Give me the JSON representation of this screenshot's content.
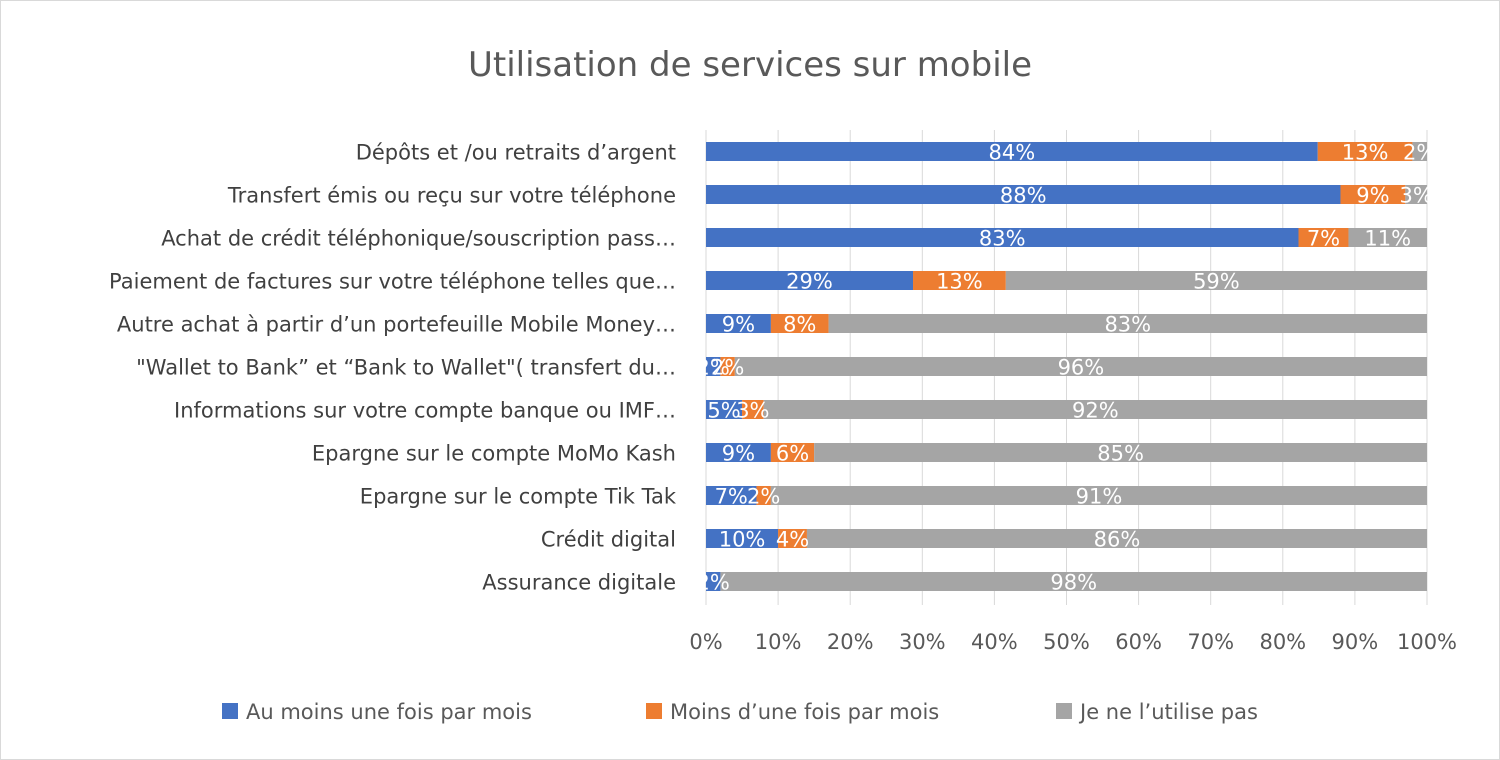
{
  "chart_data": {
    "type": "bar",
    "orientation": "horizontal",
    "stacked": "percent",
    "title": "Utilisation de services sur mobile",
    "categories": [
      "Dépôts et /ou retraits d’argent",
      "Transfert émis ou reçu sur votre téléphone",
      "Achat de crédit téléphonique/souscription pass…",
      "Paiement de factures sur votre téléphone telles que…",
      "Autre achat à partir d’un portefeuille Mobile Money…",
      "\"Wallet to Bank” et “Bank to Wallet\"( transfert du…",
      "Informations sur votre compte banque ou IMF…",
      "Epargne sur le compte MoMo Kash",
      "Epargne sur le compte Tik Tak",
      "Crédit digital",
      "Assurance digitale"
    ],
    "series": [
      {
        "name": "Au moins une fois par mois",
        "color": "#4472c4",
        "values": [
          84,
          88,
          83,
          29,
          9,
          2,
          5,
          9,
          7,
          10,
          2
        ]
      },
      {
        "name": "Moins d’une fois par mois",
        "color": "#ed7d31",
        "values": [
          13,
          9,
          7,
          13,
          8,
          2,
          3,
          6,
          2,
          4,
          0
        ]
      },
      {
        "name": "Je ne l’utilise pas",
        "color": "#a5a5a5",
        "values": [
          2,
          3,
          11,
          59,
          83,
          96,
          92,
          85,
          91,
          86,
          98
        ]
      }
    ],
    "xlim": [
      0,
      100
    ],
    "xticks": [
      "0%",
      "10%",
      "20%",
      "30%",
      "40%",
      "50%",
      "60%",
      "70%",
      "80%",
      "90%",
      "100%"
    ],
    "grid": "vertical",
    "legend": "bottom",
    "data_labels": true
  }
}
